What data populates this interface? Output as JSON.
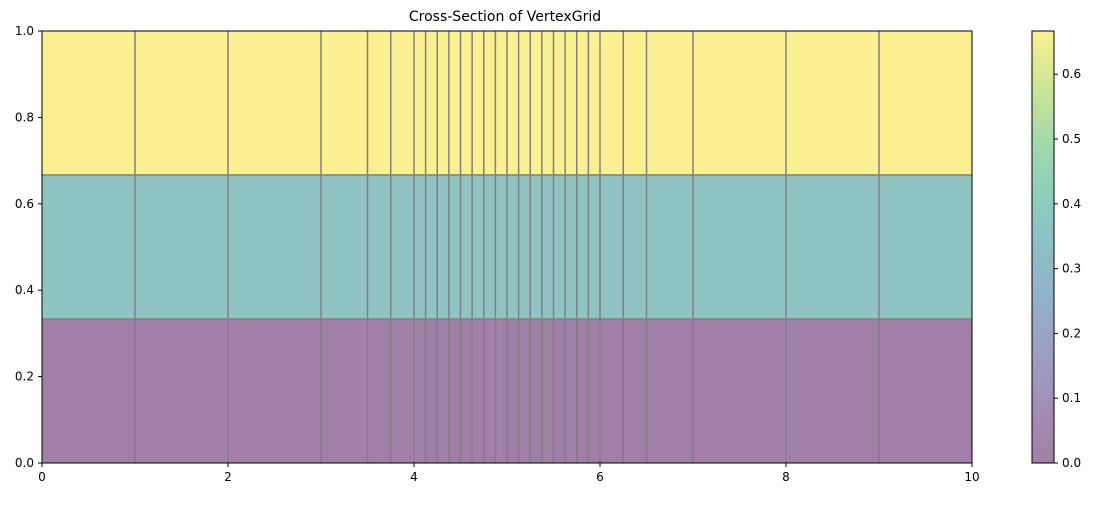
{
  "chart_data": {
    "type": "heatmap",
    "title": "Cross-Section of VertexGrid",
    "xlabel": "",
    "ylabel": "",
    "xlim": [
      0,
      10
    ],
    "ylim": [
      0,
      1
    ],
    "x_ticks": [
      0,
      2,
      4,
      6,
      8,
      10
    ],
    "y_ticks": [
      0.0,
      0.2,
      0.4,
      0.6,
      0.8,
      1.0
    ],
    "x_tick_labels": [
      "0",
      "2",
      "4",
      "6",
      "8",
      "10"
    ],
    "y_tick_labels": [
      "0.0",
      "0.2",
      "0.4",
      "0.6",
      "0.8",
      "1.0"
    ],
    "column_edges": [
      0,
      1,
      2,
      3,
      3.5,
      3.75,
      4,
      4.125,
      4.25,
      4.375,
      4.5,
      4.625,
      4.75,
      4.875,
      5,
      5.125,
      5.25,
      5.375,
      5.5,
      5.625,
      5.75,
      5.875,
      6,
      6.25,
      6.5,
      7,
      8,
      9,
      10
    ],
    "layers": [
      {
        "y_range": [
          0,
          0.3333
        ],
        "value": 0.0
      },
      {
        "y_range": [
          0.3333,
          0.6667
        ],
        "value": 0.3333
      },
      {
        "y_range": [
          0.6667,
          1.0
        ],
        "value": 0.6667
      }
    ],
    "colorbar": {
      "vmin": 0.0,
      "vmax": 0.6667,
      "ticks": [
        0.0,
        0.1,
        0.2,
        0.3,
        0.4,
        0.5,
        0.6
      ],
      "tick_labels": [
        "0.0",
        "0.1",
        "0.2",
        "0.3",
        "0.4",
        "0.5",
        "0.6"
      ],
      "colormap": "viridis",
      "alpha": 0.5
    },
    "grid_line_color": "#808080",
    "layer_colors": [
      "#a080a6",
      "#90c4c2",
      "#fbf08f"
    ]
  }
}
